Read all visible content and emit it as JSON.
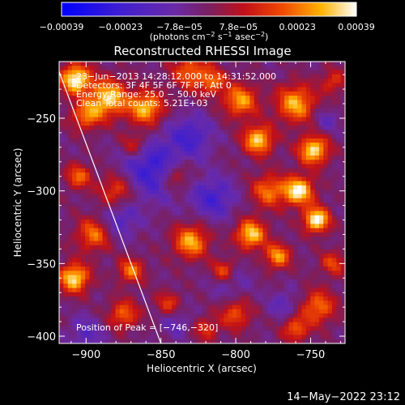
{
  "chart_data": {
    "type": "heatmap",
    "title": "Reconstructed RHESSI Image",
    "xlabel": "Heliocentric X (arcsec)",
    "ylabel": "Heliocentric Y (arcsec)",
    "xlim": [
      -918,
      -727
    ],
    "ylim": [
      -405,
      -211
    ],
    "xticks": [
      -900,
      -850,
      -800,
      -750
    ],
    "yticks": [
      -250,
      -300,
      -350,
      -400
    ],
    "x_tick_labels": [
      "−900",
      "−850",
      "−800",
      "−750"
    ],
    "y_tick_labels": [
      "−250",
      "−300",
      "−350",
      "−400"
    ],
    "colorbar": {
      "range": [
        -0.00039,
        0.00039
      ],
      "tick_labels": [
        "−0.00039",
        "−0.00023",
        "−7.8e−05",
        "7.8e−05",
        "0.00023",
        "0.00039"
      ],
      "label_text": "(photons cm",
      "label_sup1": "−2",
      "label_mid1": " s",
      "label_sup2": "−1",
      "label_mid2": " asec",
      "label_sup3": "−2",
      "label_end": ")"
    },
    "annotations": [
      "23−Jun−2013 14:28:12.000 to 14:31:52.000",
      "Detectors: 3F 4F 5F 6F 7F 8F, Att 0",
      "Energy Range: 25.0 − 50.0 keV",
      "Clean    Total counts: 5.21E+03"
    ],
    "peak_text": "Position of Peak = [−746,−320]",
    "peak": [
      -746,
      -320
    ],
    "limb_line": [
      [
        -918,
        -218
      ],
      [
        -850,
        -405
      ]
    ],
    "hotspots": [
      {
        "x": -907,
        "y": -223,
        "v": 1.0,
        "s": 7
      },
      {
        "x": -885,
        "y": -236,
        "v": 0.85,
        "s": 9
      },
      {
        "x": -860,
        "y": -243,
        "v": 0.8,
        "s": 8
      },
      {
        "x": -900,
        "y": -248,
        "v": 0.6,
        "s": 7
      },
      {
        "x": -830,
        "y": -218,
        "v": 0.55,
        "s": 9
      },
      {
        "x": -797,
        "y": -238,
        "v": 0.7,
        "s": 8
      },
      {
        "x": -785,
        "y": -265,
        "v": 0.85,
        "s": 7
      },
      {
        "x": -760,
        "y": -240,
        "v": 0.75,
        "s": 9
      },
      {
        "x": -748,
        "y": -272,
        "v": 0.9,
        "s": 7
      },
      {
        "x": -758,
        "y": -300,
        "v": 0.95,
        "s": 7
      },
      {
        "x": -746,
        "y": -320,
        "v": 1.0,
        "s": 6
      },
      {
        "x": -778,
        "y": -300,
        "v": 0.6,
        "s": 8
      },
      {
        "x": -790,
        "y": -330,
        "v": 0.85,
        "s": 7
      },
      {
        "x": -772,
        "y": -345,
        "v": 0.7,
        "s": 6
      },
      {
        "x": -815,
        "y": -225,
        "v": 0.5,
        "s": 6
      },
      {
        "x": -840,
        "y": -290,
        "v": 0.45,
        "s": 7
      },
      {
        "x": -830,
        "y": -335,
        "v": 0.75,
        "s": 8
      },
      {
        "x": -808,
        "y": -355,
        "v": 0.65,
        "s": 6
      },
      {
        "x": -880,
        "y": -300,
        "v": 0.5,
        "s": 8
      },
      {
        "x": -905,
        "y": -290,
        "v": 0.55,
        "s": 6
      },
      {
        "x": -895,
        "y": -330,
        "v": 0.6,
        "s": 8
      },
      {
        "x": -908,
        "y": -360,
        "v": 0.9,
        "s": 7
      },
      {
        "x": -870,
        "y": -355,
        "v": 0.6,
        "s": 6
      },
      {
        "x": -875,
        "y": -385,
        "v": 0.55,
        "s": 7
      },
      {
        "x": -845,
        "y": -378,
        "v": 0.45,
        "s": 6
      },
      {
        "x": -800,
        "y": -385,
        "v": 0.5,
        "s": 7
      },
      {
        "x": -745,
        "y": -380,
        "v": 0.6,
        "s": 8
      },
      {
        "x": -760,
        "y": -395,
        "v": 0.55,
        "s": 6
      },
      {
        "x": -735,
        "y": -350,
        "v": 0.45,
        "s": 6
      },
      {
        "x": -868,
        "y": -268,
        "v": 0.4,
        "s": 6
      },
      {
        "x": -820,
        "y": -395,
        "v": 0.4,
        "s": 6
      },
      {
        "x": -735,
        "y": -225,
        "v": 0.4,
        "s": 6
      }
    ],
    "coldspots": [
      {
        "x": -855,
        "y": -285,
        "v": 0.9,
        "s": 14
      },
      {
        "x": -830,
        "y": -262,
        "v": 0.7,
        "s": 10
      },
      {
        "x": -815,
        "y": -305,
        "v": 0.75,
        "s": 10
      },
      {
        "x": -805,
        "y": -360,
        "v": 0.5,
        "s": 9
      },
      {
        "x": -878,
        "y": -320,
        "v": 0.6,
        "s": 9
      },
      {
        "x": -900,
        "y": -398,
        "v": 0.5,
        "s": 8
      },
      {
        "x": -768,
        "y": -378,
        "v": 0.45,
        "s": 7
      },
      {
        "x": -740,
        "y": -252,
        "v": 0.4,
        "s": 6
      },
      {
        "x": -840,
        "y": -390,
        "v": 0.4,
        "s": 8
      }
    ]
  },
  "footer_timestamp": "14−May−2022 23:12",
  "colors": {
    "background": "#000000",
    "foreground": "#ffffff"
  }
}
